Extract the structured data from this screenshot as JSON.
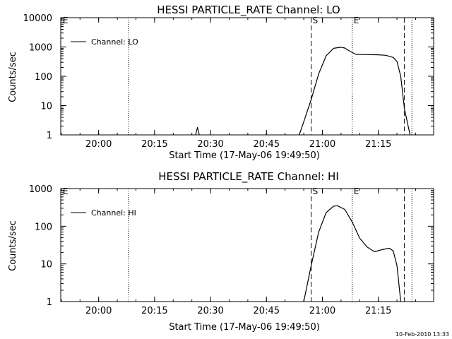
{
  "footer": {
    "timestamp": "10-Feb-2010 13:33"
  },
  "chart_data": [
    {
      "type": "line",
      "title": "HESSI PARTICLE_RATE Channel: LO",
      "xlabel": "Start Time (17-May-06 19:49:50)",
      "ylabel": "Counts/sec",
      "yscale": "log",
      "ylim": [
        1,
        10000
      ],
      "xlim_minutes": [
        0,
        100
      ],
      "x_ticks": [
        "20:00",
        "20:15",
        "20:30",
        "20:45",
        "21:00",
        "21:15"
      ],
      "y_ticks": [
        "1",
        "10",
        "100",
        "1000",
        "10000"
      ],
      "legend": {
        "label": "Channel: LO",
        "position": "top-left"
      },
      "markers": [
        {
          "label": "E",
          "time": "19:50",
          "style": "none"
        },
        {
          "label": "",
          "time": "20:08",
          "style": "dotted"
        },
        {
          "label": "S",
          "time": "20:57",
          "style": "dashed"
        },
        {
          "label": "E",
          "time": "21:08",
          "style": "dotted"
        },
        {
          "label": "",
          "time": "21:22",
          "style": "dashed"
        },
        {
          "label": "",
          "time": "21:24",
          "style": "dotted"
        }
      ],
      "series": [
        {
          "name": "Channel: LO",
          "segments": [
            [
              [
                "20:26",
                1
              ],
              [
                "20:26.5",
                1.8
              ],
              [
                "20:27",
                1
              ]
            ],
            [
              [
                "20:53.8",
                1
              ],
              [
                "20:55",
                2.8
              ],
              [
                "20:57",
                16
              ],
              [
                "20:59",
                120
              ],
              [
                "21:01",
                500
              ],
              [
                "21:03",
                900
              ],
              [
                "21:05",
                980
              ],
              [
                "21:06",
                920
              ],
              [
                "21:07",
                760
              ],
              [
                "21:09",
                560
              ],
              [
                "21:12",
                550
              ],
              [
                "21:15",
                540
              ],
              [
                "21:17",
                520
              ],
              [
                "21:19",
                440
              ],
              [
                "21:20",
                320
              ],
              [
                "21:21",
                100
              ],
              [
                "21:22",
                8
              ],
              [
                "21:23",
                2
              ],
              [
                "21:23.5",
                1
              ]
            ]
          ]
        }
      ]
    },
    {
      "type": "line",
      "title": "HESSI PARTICLE_RATE Channel: HI",
      "xlabel": "Start Time (17-May-06 19:49:50)",
      "ylabel": "Counts/sec",
      "yscale": "log",
      "ylim": [
        1,
        1000
      ],
      "xlim_minutes": [
        0,
        100
      ],
      "x_ticks": [
        "20:00",
        "20:15",
        "20:30",
        "20:45",
        "21:00",
        "21:15"
      ],
      "y_ticks": [
        "1",
        "10",
        "100",
        "1000"
      ],
      "legend": {
        "label": "Channel: HI",
        "position": "top-left"
      },
      "markers": [
        {
          "label": "E",
          "time": "19:50",
          "style": "none"
        },
        {
          "label": "",
          "time": "20:08",
          "style": "dotted"
        },
        {
          "label": "S",
          "time": "20:57",
          "style": "dashed"
        },
        {
          "label": "E",
          "time": "21:08",
          "style": "dotted"
        },
        {
          "label": "",
          "time": "21:22",
          "style": "dashed"
        },
        {
          "label": "",
          "time": "21:24",
          "style": "dotted"
        }
      ],
      "series": [
        {
          "name": "Channel: HI",
          "segments": [
            [
              [
                "20:55",
                1
              ],
              [
                "20:57",
                9
              ],
              [
                "20:59",
                70
              ],
              [
                "21:01",
                230
              ],
              [
                "21:03",
                340
              ],
              [
                "21:04",
                350
              ],
              [
                "21:06",
                280
              ],
              [
                "21:08",
                130
              ],
              [
                "21:10",
                48
              ],
              [
                "21:12",
                28
              ],
              [
                "21:14",
                21
              ],
              [
                "21:16",
                24
              ],
              [
                "21:18",
                26
              ],
              [
                "21:19",
                22
              ],
              [
                "21:20",
                9
              ],
              [
                "21:21",
                1
              ]
            ]
          ]
        }
      ]
    }
  ]
}
